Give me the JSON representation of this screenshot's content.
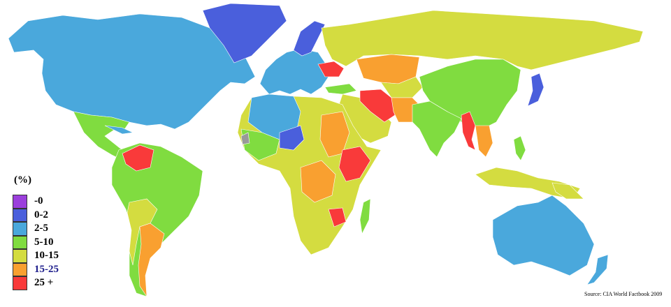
{
  "legend": {
    "title": "(%)",
    "items": [
      {
        "label": "-0",
        "color": "#9b3fdc"
      },
      {
        "label": "0-2",
        "color": "#4a5fdc"
      },
      {
        "label": "2-5",
        "color": "#4aa8dc"
      },
      {
        "label": "5-10",
        "color": "#80dc40"
      },
      {
        "label": "10-15",
        "color": "#d4dc40"
      },
      {
        "label": "15-25",
        "color": "#f9a030"
      },
      {
        "label": "25 +",
        "color": "#f93a3a"
      }
    ]
  },
  "source": "Source: CIA World Factbook 2009",
  "colors": {
    "no_data": "#999999"
  }
}
